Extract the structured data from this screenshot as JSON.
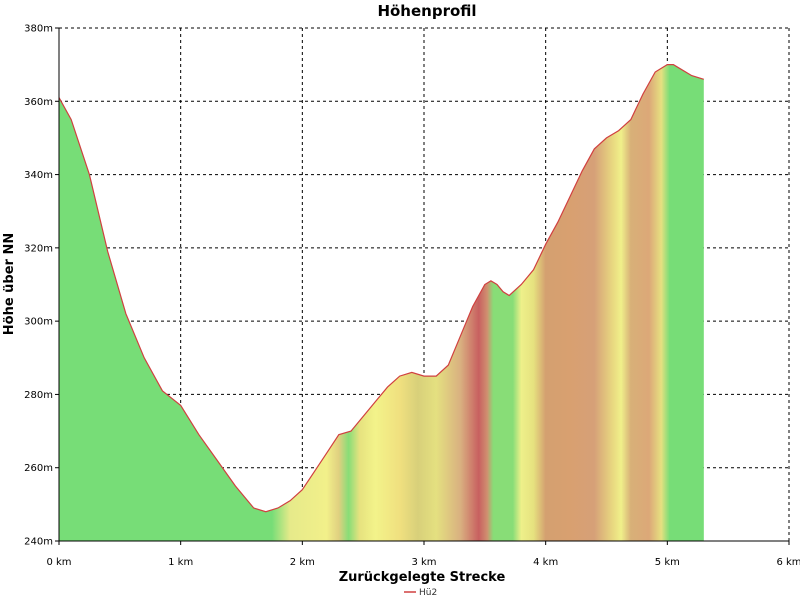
{
  "chart_data": {
    "type": "area",
    "title": "Höhenprofil",
    "xlabel": "Zurückgelegte Strecke",
    "ylabel": "Höhe über NN",
    "xlim": [
      0,
      6
    ],
    "ylim": [
      240,
      380
    ],
    "x_ticks": [
      0,
      1,
      2,
      3,
      4,
      5,
      6
    ],
    "x_tick_labels": [
      "0 km",
      "1 km",
      "2 km",
      "3 km",
      "4 km",
      "5 km",
      "6 km"
    ],
    "y_ticks": [
      240,
      260,
      280,
      300,
      320,
      340,
      360,
      380
    ],
    "y_tick_labels": [
      "240m",
      "260m",
      "280m",
      "300m",
      "320m",
      "340m",
      "360m",
      "380m"
    ],
    "grid": true,
    "legend_position": "bottom-center",
    "series": [
      {
        "name": "Hü2",
        "line_color": "#d04040",
        "x": [
          0,
          0.1,
          0.25,
          0.4,
          0.55,
          0.7,
          0.85,
          1.0,
          1.15,
          1.3,
          1.45,
          1.6,
          1.7,
          1.8,
          1.9,
          2.0,
          2.1,
          2.2,
          2.3,
          2.4,
          2.5,
          2.6,
          2.7,
          2.8,
          2.9,
          3.0,
          3.1,
          3.2,
          3.3,
          3.4,
          3.5,
          3.55,
          3.6,
          3.65,
          3.7,
          3.8,
          3.9,
          4.0,
          4.1,
          4.2,
          4.3,
          4.4,
          4.5,
          4.6,
          4.7,
          4.8,
          4.9,
          5.0,
          5.05,
          5.1,
          5.2,
          5.3
        ],
        "y": [
          361,
          355,
          340,
          319,
          302,
          290,
          281,
          277,
          269,
          262,
          255,
          249,
          248,
          249,
          251,
          254,
          259,
          264,
          269,
          270,
          274,
          278,
          282,
          285,
          286,
          285,
          285,
          288,
          296,
          304,
          310,
          311,
          310,
          308,
          307,
          310,
          314,
          321,
          327,
          334,
          341,
          347,
          350,
          352,
          355,
          362,
          368,
          370,
          370,
          369,
          367,
          366
        ]
      }
    ],
    "gradient_stops": [
      {
        "x": 0.0,
        "color": "#77dd77"
      },
      {
        "x": 1.75,
        "color": "#77dd77"
      },
      {
        "x": 1.9,
        "color": "#e6ea8a"
      },
      {
        "x": 2.2,
        "color": "#f2f08a"
      },
      {
        "x": 2.3,
        "color": "#e0d080"
      },
      {
        "x": 2.38,
        "color": "#88dd77"
      },
      {
        "x": 2.47,
        "color": "#e6e27f"
      },
      {
        "x": 2.6,
        "color": "#f3f38a"
      },
      {
        "x": 2.8,
        "color": "#f0e07f"
      },
      {
        "x": 2.95,
        "color": "#d8d07a"
      },
      {
        "x": 3.1,
        "color": "#e4e080"
      },
      {
        "x": 3.3,
        "color": "#d9b080"
      },
      {
        "x": 3.45,
        "color": "#c86060"
      },
      {
        "x": 3.52,
        "color": "#d09070"
      },
      {
        "x": 3.57,
        "color": "#88dd77"
      },
      {
        "x": 3.73,
        "color": "#88dd77"
      },
      {
        "x": 3.8,
        "color": "#eef08a"
      },
      {
        "x": 3.9,
        "color": "#e6e27f"
      },
      {
        "x": 4.0,
        "color": "#d4a070"
      },
      {
        "x": 4.2,
        "color": "#d8a070"
      },
      {
        "x": 4.4,
        "color": "#d6a078"
      },
      {
        "x": 4.55,
        "color": "#e8d880"
      },
      {
        "x": 4.62,
        "color": "#f0f08a"
      },
      {
        "x": 4.7,
        "color": "#d8b078"
      },
      {
        "x": 4.85,
        "color": "#dca878"
      },
      {
        "x": 4.95,
        "color": "#e6e080"
      },
      {
        "x": 5.02,
        "color": "#77dd77"
      },
      {
        "x": 5.3,
        "color": "#77dd77"
      }
    ]
  }
}
